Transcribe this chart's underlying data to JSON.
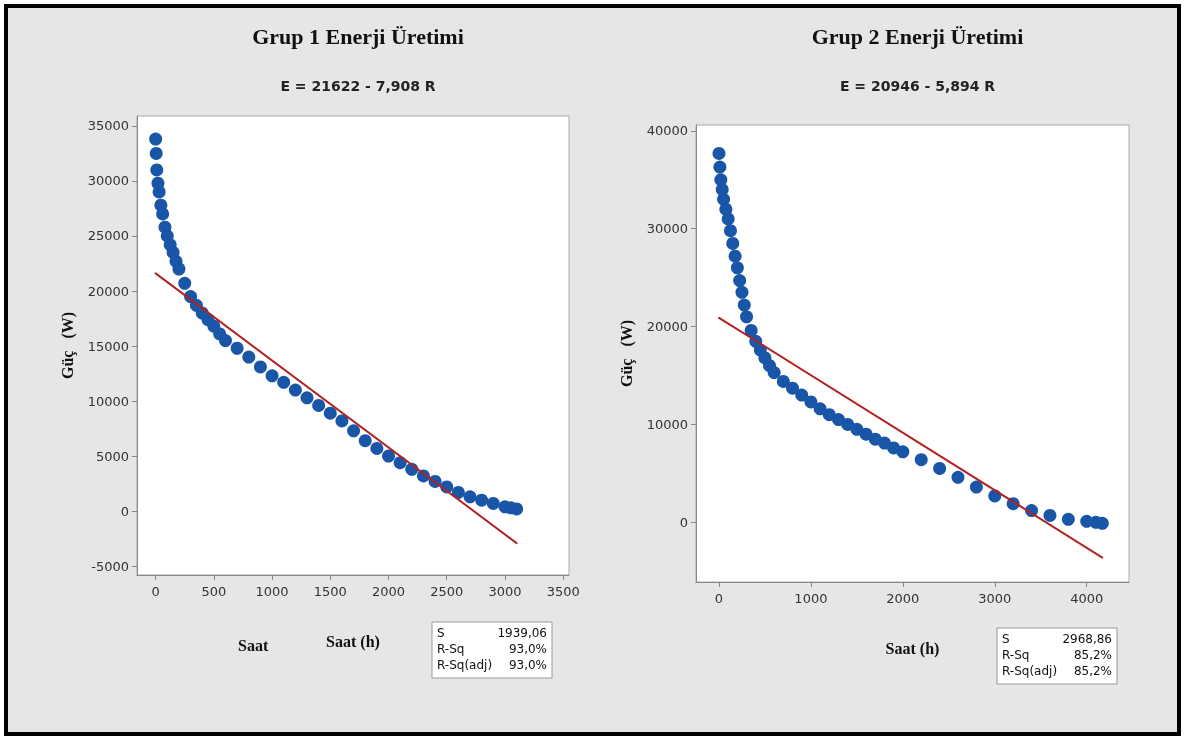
{
  "chart_data": [
    {
      "type": "scatter",
      "title": "Grup 1 Enerji Üretimi",
      "subtitle": "E = 21622 - 7,908 R",
      "xlabel": "Saat (h)",
      "ylabel": "Güç   (W)",
      "marker": "circle",
      "xlim": [
        -160,
        3550
      ],
      "xticks": [
        0,
        500,
        1000,
        1500,
        2000,
        2500,
        3000,
        3500
      ],
      "ylim": [
        -5800,
        35900
      ],
      "yticks": [
        -5000,
        0,
        5000,
        10000,
        15000,
        20000,
        25000,
        30000,
        35000
      ],
      "annotations": [
        "Saat",
        "S 1939,06",
        "R-Sq 93,0%",
        "R-Sq(adj) 93,0%"
      ],
      "series": [
        {
          "color": "#1a56a8",
          "x": [
            0,
            5,
            10,
            20,
            30,
            45,
            60,
            80,
            100,
            125,
            150,
            175,
            200,
            250,
            300,
            350,
            400,
            450,
            500,
            550,
            600,
            700,
            800,
            900,
            1000,
            1100,
            1200,
            1300,
            1400,
            1500,
            1600,
            1700,
            1800,
            1900,
            2000,
            2100,
            2200,
            2300,
            2400,
            2500,
            2600,
            2700,
            2800,
            2900,
            3000,
            3050,
            3100
          ],
          "values": [
            33800,
            32500,
            31000,
            29800,
            29000,
            27800,
            27000,
            25800,
            25000,
            24200,
            23500,
            22700,
            22000,
            20700,
            19500,
            18700,
            18000,
            17400,
            16800,
            16100,
            15500,
            14800,
            14000,
            13100,
            12300,
            11700,
            11000,
            10300,
            9600,
            8900,
            8200,
            7300,
            6400,
            5700,
            5000,
            4400,
            3800,
            3200,
            2700,
            2200,
            1700,
            1300,
            1000,
            700,
            400,
            300,
            200
          ]
        },
        {
          "type": "line",
          "marker": "none",
          "color": "#b22222",
          "x": [
            0,
            3100
          ],
          "values": [
            21600,
            -2900
          ]
        }
      ]
    },
    {
      "type": "scatter",
      "title": "Grup 2 Enerji Üretimi",
      "subtitle": "E = 20946 - 5,894 R",
      "xlabel": "Saat (h)",
      "ylabel": "Güç   (W)",
      "marker": "circle",
      "xlim": [
        -250,
        4460
      ],
      "xticks": [
        0,
        1000,
        2000,
        3000,
        4000
      ],
      "ylim": [
        -6100,
        40600
      ],
      "yticks": [
        0,
        10000,
        20000,
        30000,
        40000
      ],
      "annotations": [
        "S 2968,86",
        "R-Sq 85,2%",
        "R-Sq(adj) 85,2%"
      ],
      "series": [
        {
          "color": "#1a56a8",
          "x": [
            0,
            10,
            20,
            35,
            50,
            75,
            100,
            125,
            150,
            175,
            200,
            225,
            250,
            275,
            300,
            350,
            400,
            450,
            500,
            550,
            600,
            700,
            800,
            900,
            1000,
            1100,
            1200,
            1300,
            1400,
            1500,
            1600,
            1700,
            1800,
            1900,
            2000,
            2200,
            2400,
            2600,
            2800,
            3000,
            3200,
            3400,
            3600,
            3800,
            4000,
            4100,
            4170
          ],
          "values": [
            37700,
            36300,
            35000,
            34000,
            33000,
            32000,
            31000,
            29800,
            28500,
            27200,
            26000,
            24700,
            23500,
            22200,
            21000,
            19600,
            18500,
            17600,
            16800,
            16000,
            15300,
            14400,
            13700,
            13000,
            12300,
            11600,
            11000,
            10500,
            10000,
            9500,
            9000,
            8500,
            8100,
            7600,
            7200,
            6400,
            5500,
            4600,
            3600,
            2700,
            1900,
            1200,
            700,
            300,
            100,
            0,
            -100
          ]
        },
        {
          "type": "line",
          "marker": "none",
          "color": "#b22222",
          "x": [
            0,
            4170
          ],
          "values": [
            20900,
            -3600
          ]
        }
      ]
    }
  ]
}
